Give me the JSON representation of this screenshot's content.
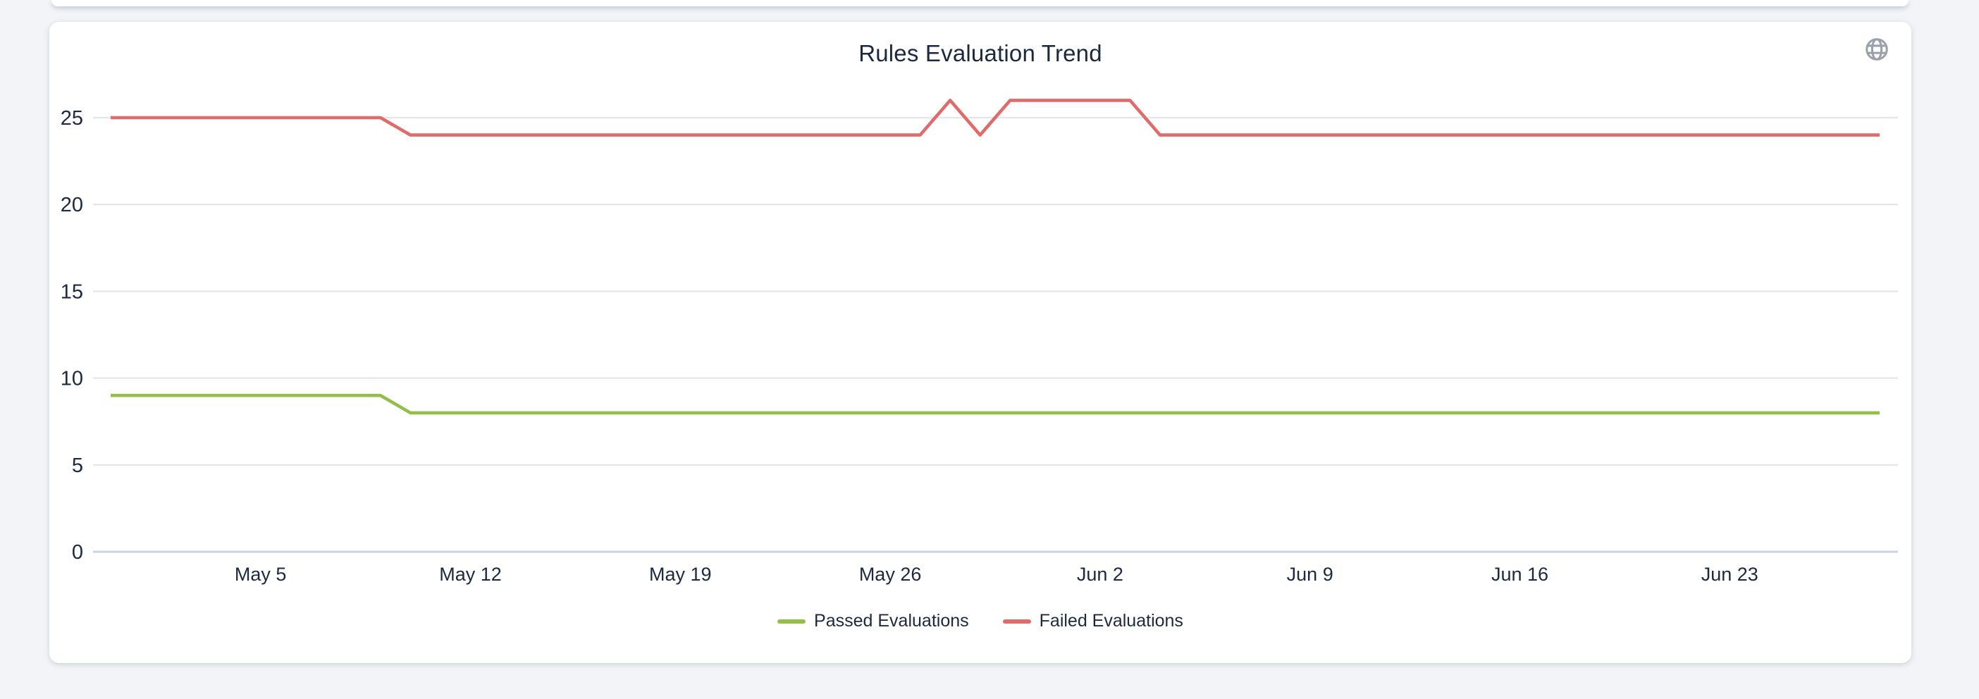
{
  "page": {
    "background": "#f3f4f7"
  },
  "card": {
    "title": "Rules Evaluation Trend"
  },
  "globe_button": {
    "icon": "globe-icon",
    "color": "#9aa0ab"
  },
  "legend": {
    "items": [
      {
        "label": "Passed Evaluations",
        "color": "#94be4a"
      },
      {
        "label": "Failed Evaluations",
        "color": "#e06b6b"
      }
    ]
  },
  "chart_data": {
    "type": "line",
    "title": "Rules Evaluation Trend",
    "x": [
      "Apr 30",
      "May 1",
      "May 2",
      "May 3",
      "May 4",
      "May 5",
      "May 6",
      "May 7",
      "May 8",
      "May 9",
      "May 10",
      "May 11",
      "May 12",
      "May 13",
      "May 14",
      "May 15",
      "May 16",
      "May 17",
      "May 18",
      "May 19",
      "May 20",
      "May 21",
      "May 22",
      "May 23",
      "May 24",
      "May 25",
      "May 26",
      "May 27",
      "May 28",
      "May 29",
      "May 30",
      "May 31",
      "Jun 1",
      "Jun 2",
      "Jun 3",
      "Jun 4",
      "Jun 5",
      "Jun 6",
      "Jun 7",
      "Jun 8",
      "Jun 9",
      "Jun 10",
      "Jun 11",
      "Jun 12",
      "Jun 13",
      "Jun 14",
      "Jun 15",
      "Jun 16",
      "Jun 17",
      "Jun 18",
      "Jun 19",
      "Jun 20",
      "Jun 21",
      "Jun 22",
      "Jun 23",
      "Jun 24",
      "Jun 25",
      "Jun 26",
      "Jun 27",
      "Jun 28"
    ],
    "series": [
      {
        "name": "Passed Evaluations",
        "color": "#94be4a",
        "values": [
          9,
          9,
          9,
          9,
          9,
          9,
          9,
          9,
          9,
          9,
          8,
          8,
          8,
          8,
          8,
          8,
          8,
          8,
          8,
          8,
          8,
          8,
          8,
          8,
          8,
          8,
          8,
          8,
          8,
          8,
          8,
          8,
          8,
          8,
          8,
          8,
          8,
          8,
          8,
          8,
          8,
          8,
          8,
          8,
          8,
          8,
          8,
          8,
          8,
          8,
          8,
          8,
          8,
          8,
          8,
          8,
          8,
          8,
          8,
          8
        ]
      },
      {
        "name": "Failed Evaluations",
        "color": "#e06b6b",
        "values": [
          25,
          25,
          25,
          25,
          25,
          25,
          25,
          25,
          25,
          25,
          24,
          24,
          24,
          24,
          24,
          24,
          24,
          24,
          24,
          24,
          24,
          24,
          24,
          24,
          24,
          24,
          24,
          24,
          26,
          24,
          26,
          26,
          26,
          26,
          26,
          24,
          24,
          24,
          24,
          24,
          24,
          24,
          24,
          24,
          24,
          24,
          24,
          24,
          24,
          24,
          24,
          24,
          24,
          24,
          24,
          24,
          24,
          24,
          24,
          24
        ]
      }
    ],
    "y_ticks": [
      0,
      5,
      10,
      15,
      20,
      25
    ],
    "ylim": [
      0,
      27.5
    ],
    "x_tick_labels": [
      "May 5",
      "May 12",
      "May 19",
      "May 26",
      "Jun 2",
      "Jun 9",
      "Jun 16",
      "Jun 23"
    ],
    "x_tick_indices": [
      5,
      12,
      19,
      26,
      33,
      40,
      47,
      54
    ],
    "grid": true,
    "legend_position": "bottom",
    "colors": {
      "grid_line": "#e6e7ea",
      "zero_line": "#ccd3e4",
      "text": "#1c2940"
    }
  }
}
